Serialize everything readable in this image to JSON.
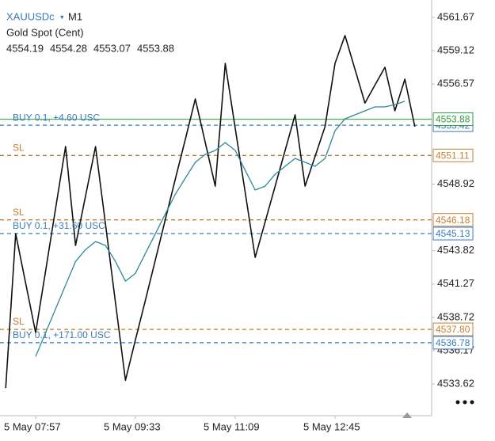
{
  "chart_data": {
    "type": "line",
    "symbol": "XAUUSDc",
    "timeframe": "M1",
    "title": "Gold Spot (Cent)",
    "ohlc": [
      4554.19,
      4554.28,
      4553.07,
      4553.88
    ],
    "categories": [
      null,
      null,
      null,
      "5 May 07:57",
      null,
      null,
      null,
      null,
      null,
      null,
      null,
      null,
      null,
      "5 May 09:33",
      null,
      null,
      null,
      null,
      null,
      null,
      null,
      null,
      null,
      "5 May 11:09",
      null,
      null,
      null,
      null,
      null,
      null,
      null,
      null,
      null,
      "5 May 12:45",
      null,
      null,
      null,
      null,
      null,
      null,
      null,
      null,
      null
    ],
    "series": [
      {
        "color": "#111111",
        "values": [
          4533.31,
          4545.12,
          4541.34,
          4537.55,
          4542.28,
          4547.06,
          4551.79,
          4544.22,
          4548.0,
          4551.79,
          4545.85,
          4539.85,
          4533.91,
          4537.0,
          4540.03,
          4543.12,
          4546.22,
          4549.31,
          4552.34,
          4555.43,
          4552.09,
          4548.76,
          4558.15,
          4553.19,
          4548.28,
          4543.31,
          4546.03,
          4548.76,
          4551.49,
          4554.22,
          4548.76,
          4551.03,
          4553.31,
          4558.15,
          4560.28,
          4557.7,
          4555.12,
          4556.49,
          4557.85,
          4554.52,
          4556.94,
          4553.31,
          null
        ]
      },
      {
        "color": "#2a8a9a",
        "values": [
          null,
          null,
          null,
          4535.73,
          4537.55,
          4539.37,
          4541.19,
          4543.0,
          4543.91,
          4544.52,
          4544.22,
          4543.0,
          4541.49,
          4542.09,
          4543.61,
          4545.12,
          4546.64,
          4548.15,
          4549.37,
          4550.58,
          4551.19,
          4551.49,
          4552.09,
          4551.49,
          4549.97,
          4548.46,
          4548.76,
          4549.67,
          4550.28,
          4550.88,
          4550.58,
          4550.28,
          4550.88,
          4553.0,
          4553.91,
          4554.22,
          4554.52,
          4554.82,
          4554.82,
          4555.0,
          4555.25,
          null,
          null
        ]
      }
    ],
    "levels": [
      {
        "label": "BUY 0.1,   +4.60 USC",
        "value": 4553.42,
        "color": "#3a7bbf"
      },
      {
        "label": "SL",
        "value": 4551.11,
        "color": "#c0803a"
      },
      {
        "label": "SL",
        "value": 4546.18,
        "color": "#c0803a"
      },
      {
        "label": "BUY 0.1,   +31.60 USC",
        "value": 4545.13,
        "color": "#3a7bbf"
      },
      {
        "label": "SL",
        "value": 4537.8,
        "value_label": "4537.80",
        "color": "#c0803a"
      },
      {
        "label": "BUY 0.1,   +171.00 USC",
        "value": 4536.78,
        "color": "#3a7bbf"
      }
    ],
    "current_price": {
      "value": 4553.88,
      "color": "#2e9a3a"
    },
    "ylim": [
      4531.2,
      4563.0
    ],
    "yticks": [
      4561.67,
      4559.12,
      4556.57,
      4548.92,
      4543.82,
      4541.27,
      4538.72,
      4536.17,
      4533.62
    ]
  }
}
